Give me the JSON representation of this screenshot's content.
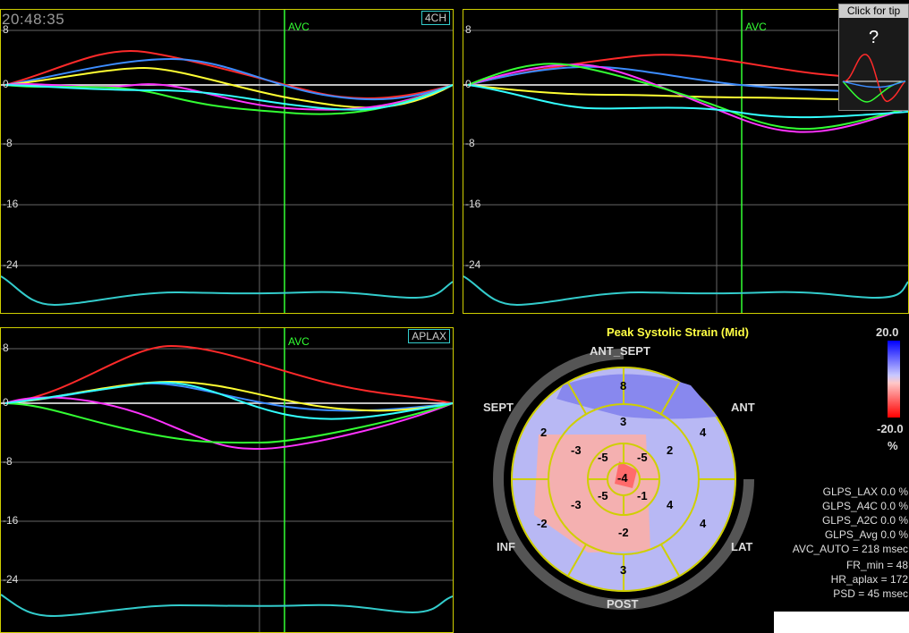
{
  "clock": "20:48:35",
  "help": {
    "title": "Click for tip",
    "icon": "?"
  },
  "panels": [
    {
      "view": "4CH",
      "marker": "AVC",
      "y_ticks": [
        "8",
        "0",
        "-8",
        "-16",
        "-24"
      ]
    },
    {
      "view": "",
      "marker": "AVC",
      "y_ticks": [
        "8",
        "0",
        "-8",
        "-16",
        "-24"
      ]
    },
    {
      "view": "APLAX",
      "marker": "AVC",
      "y_ticks": [
        "8",
        "0",
        "-8",
        "-16",
        "-24"
      ]
    }
  ],
  "bullseye": {
    "title": "Peak Systolic Strain (Mid)",
    "labels": {
      "ant_sept": "ANT_SEPT",
      "ant": "ANT",
      "lat": "LAT",
      "post": "POST",
      "inf": "INF",
      "sept": "SEPT"
    },
    "segments": [
      {
        "id": "basal-ant-sept",
        "value": "8"
      },
      {
        "id": "basal-ant",
        "value": "4"
      },
      {
        "id": "basal-lat",
        "value": "4"
      },
      {
        "id": "basal-post",
        "value": "3"
      },
      {
        "id": "basal-inf",
        "value": "-2"
      },
      {
        "id": "basal-sept",
        "value": "2"
      },
      {
        "id": "mid-ant-sept",
        "value": "3"
      },
      {
        "id": "mid-ant",
        "value": "2"
      },
      {
        "id": "mid-lat",
        "value": "4"
      },
      {
        "id": "mid-post",
        "value": "-2"
      },
      {
        "id": "mid-inf",
        "value": "-3"
      },
      {
        "id": "mid-sept",
        "value": "-3"
      },
      {
        "id": "apical-ant",
        "value": "-5"
      },
      {
        "id": "apical-lat",
        "value": "-1"
      },
      {
        "id": "apical-inf",
        "value": "-5"
      },
      {
        "id": "apical-sept",
        "value": "-5"
      },
      {
        "id": "apex",
        "value": "-4"
      }
    ]
  },
  "scale": {
    "max": "20.0",
    "min": "-20.0",
    "unit": "%"
  },
  "metrics": [
    "GLPS_LAX  0.0 %",
    "GLPS_A4C  0.0 %",
    "GLPS_A2C  0.0 %",
    "GLPS_Avg  0.0 %",
    "AVC_AUTO = 218 msec",
    "FR_min = 48",
    "HR_aplax = 172",
    "PSD = 45 msec"
  ],
  "colors": {
    "frame": "#cfcf00",
    "avc": "#33ff33",
    "ecg": "#33cccc"
  }
}
